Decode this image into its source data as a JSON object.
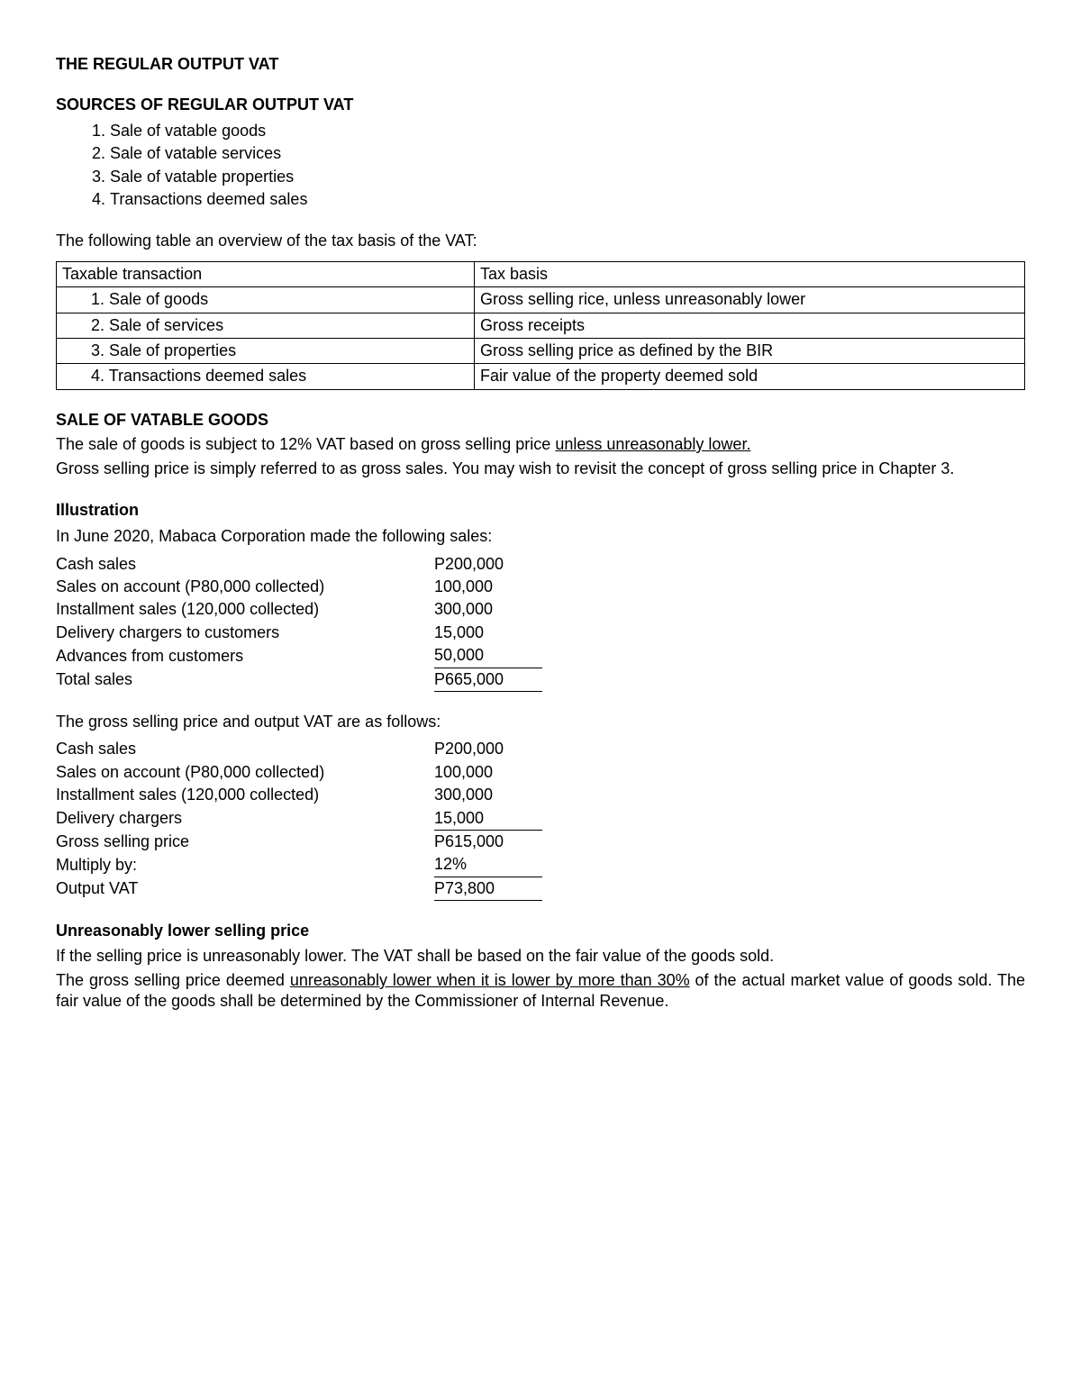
{
  "title": "THE REGULAR OUTPUT VAT",
  "sources_heading": "SOURCES OF REGULAR OUTPUT VAT",
  "sources": [
    "Sale of vatable goods",
    "Sale of vatable services",
    "Sale of vatable properties",
    "Transactions deemed sales"
  ],
  "table_intro": "The following table an overview of the tax basis of the VAT:",
  "tax_table": {
    "head_left": "Taxable transaction",
    "head_right": "Tax basis",
    "rows": [
      {
        "left": "1.  Sale of goods",
        "right": "Gross selling rice, unless unreasonably lower"
      },
      {
        "left": "2.  Sale of services",
        "right": "Gross receipts"
      },
      {
        "left": "3.  Sale of properties",
        "right": "Gross selling price as defined by the BIR"
      },
      {
        "left": "4.  Transactions deemed sales",
        "right": "Fair value of the property  deemed sold"
      }
    ]
  },
  "sale_goods_heading": "SALE OF VATABLE GOODS",
  "sale_goods_p1_a": "The sale of goods is subject to 12% VAT based on gross selling price ",
  "sale_goods_p1_u": "unless unreasonably lower.",
  "sale_goods_p2": "Gross selling price is simply referred to as gross sales. You may wish to revisit the concept of gross selling price in Chapter 3.",
  "illustration_heading": "Illustration",
  "illustration_intro": "In June 2020, Mabaca Corporation made the following sales:",
  "illus1": {
    "rows": [
      {
        "label": "Cash sales",
        "value": "P200,000",
        "cls": ""
      },
      {
        "label": "Sales on account (P80,000 collected)",
        "value": "100,000",
        "cls": ""
      },
      {
        "label": "Installment sales (120,000 collected)",
        "value": "300,000",
        "cls": ""
      },
      {
        "label": "Delivery chargers to customers",
        "value": "15,000",
        "cls": ""
      },
      {
        "label": "Advances from customers",
        "value": "50,000",
        "cls": "single-underline"
      },
      {
        "label": "Total sales",
        "value": "P665,000",
        "cls": "top-underline"
      }
    ]
  },
  "illus_mid": "The gross selling price and output VAT are as follows:",
  "illus2": {
    "rows": [
      {
        "label": "Cash sales",
        "value": "P200,000",
        "cls": ""
      },
      {
        "label": "Sales on account (P80,000 collected)",
        "value": "100,000",
        "cls": ""
      },
      {
        "label": "Installment sales (120,000 collected)",
        "value": "300,000",
        "cls": ""
      },
      {
        "label": "Delivery chargers",
        "value": "15,000",
        "cls": "single-underline"
      },
      {
        "label": "Gross selling price",
        "value": "P615,000",
        "cls": ""
      },
      {
        "label": "Multiply by:",
        "value": "12%",
        "cls": "single-underline"
      },
      {
        "label": "Output VAT",
        "value": "P73,800",
        "cls": "top-underline"
      }
    ]
  },
  "unreason_heading": "Unreasonably lower selling price",
  "unreason_p1": "If the selling price is unreasonably lower. The VAT shall be based on the fair value of the goods sold.",
  "unreason_p2_a": "The gross selling price deemed ",
  "unreason_p2_u": "unreasonably lower when it is lower by more than 30%",
  "unreason_p2_b": " of the actual market value of goods sold. The fair value of the goods shall be determined by the Commissioner of Internal Revenue."
}
